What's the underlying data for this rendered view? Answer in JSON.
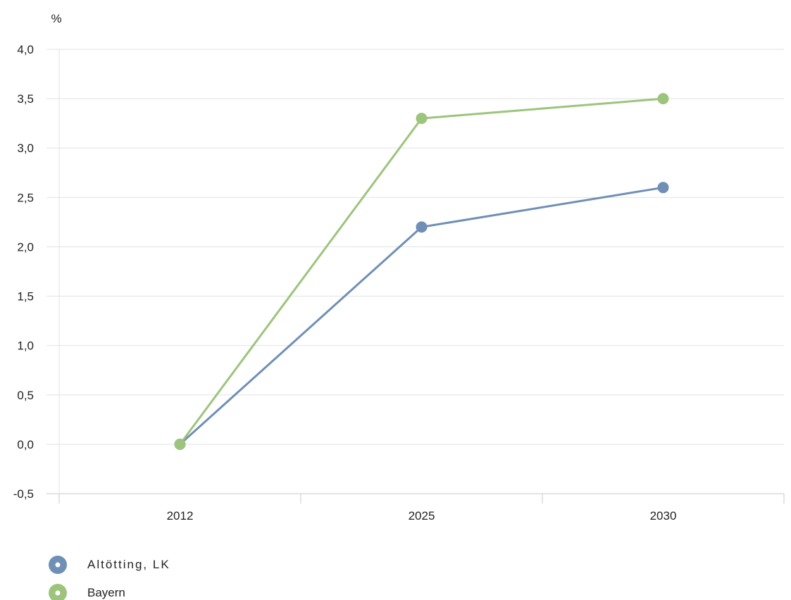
{
  "chart_data": {
    "type": "line",
    "y_unit": "%",
    "categories": [
      "2012",
      "2025",
      "2030"
    ],
    "ylim": [
      -0.5,
      4.0
    ],
    "yticks": [
      "-0,5",
      "0,0",
      "0,5",
      "1,0",
      "1,5",
      "2,0",
      "2,5",
      "3,0",
      "3,5",
      "4,0"
    ],
    "ytick_values": [
      -0.5,
      0.0,
      0.5,
      1.0,
      1.5,
      2.0,
      2.5,
      3.0,
      3.5,
      4.0
    ],
    "grid": true,
    "legend_position": "bottom-left",
    "series": [
      {
        "name": "Altötting, LK",
        "color": "#6f8fb5",
        "values": [
          0.0,
          2.2,
          2.6
        ]
      },
      {
        "name": "Bayern",
        "color": "#9dc47c",
        "values": [
          0.0,
          3.3,
          3.5
        ]
      }
    ]
  }
}
